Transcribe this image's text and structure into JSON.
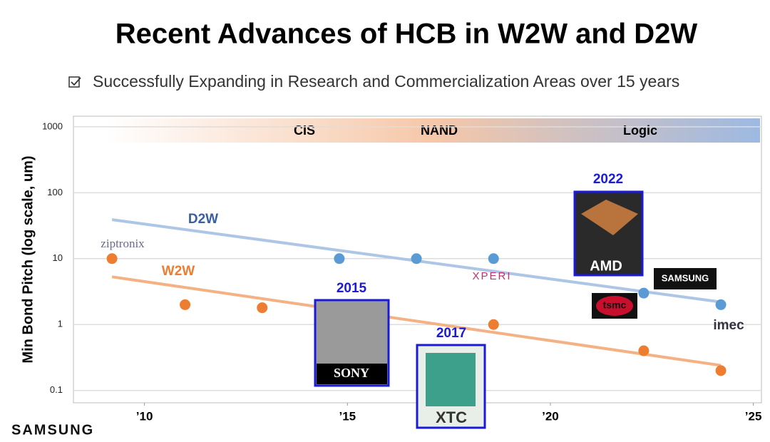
{
  "chart_data": {
    "type": "scatter",
    "title": "Recent Advances of HCB in W2W and D2W",
    "subtitle": "Successfully Expanding in Research and Commercialization Areas over 15 years",
    "y_label": "Min Bond Pitch (log scale, um)",
    "log_scale": true,
    "grid": true,
    "xlim": [
      2008.25,
      2025.2
    ],
    "xticks": [
      {
        "value": 2010,
        "label": "’10"
      },
      {
        "value": 2015,
        "label": "’15"
      },
      {
        "value": 2020,
        "label": "’20"
      },
      {
        "value": 2025,
        "label": "’25"
      }
    ],
    "ylim": [
      0.065,
      1450
    ],
    "yticks": [
      0.1,
      1,
      10,
      100,
      1000
    ],
    "areas": [
      "CIS",
      "NAND",
      "Logic"
    ],
    "series": [
      {
        "name": "D2W",
        "color": "#5b9bd5",
        "trend_color": "#adc6e5",
        "x": [
          2014.8,
          2016.7,
          2018.6,
          2022.3,
          2024.2
        ],
        "values": [
          10,
          10,
          10,
          3,
          2
        ],
        "trend_x": [
          2009.2,
          2024.2
        ],
        "trend_values": [
          39,
          2.2
        ]
      },
      {
        "name": "W2W",
        "color": "#ed7d31",
        "trend_color": "#f4b183",
        "x": [
          2009.2,
          2011.0,
          2012.9,
          2018.6,
          2022.3,
          2024.2
        ],
        "values": [
          10,
          2,
          1.8,
          1,
          0.4,
          0.2
        ],
        "trend_x": [
          2009.2,
          2024.2
        ],
        "trend_values": [
          5.3,
          0.24
        ]
      }
    ],
    "milestones": [
      {
        "year": "2015",
        "logo": "SONY"
      },
      {
        "year": "2017",
        "logo": "XTC"
      },
      {
        "year": "2022",
        "logo": "AMD"
      }
    ],
    "logos": [
      "ziptronix",
      "XPERI",
      "SAMSUNG",
      "tsmc",
      "imec"
    ],
    "footer": "SAMSUNG"
  }
}
